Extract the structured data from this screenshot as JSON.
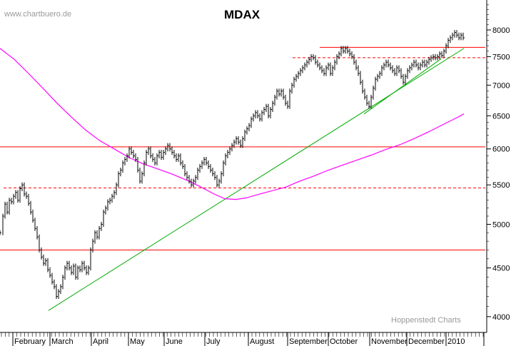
{
  "watermark": "www.chartbuero.de",
  "credit": "Hoppenstedt Charts",
  "chart_data": {
    "type": "line",
    "title": "MDAX",
    "y_scale": "log",
    "ylim": [
      3850,
      8600
    ],
    "y_ticks": [
      4000,
      4500,
      5000,
      5500,
      6000,
      6500,
      7000,
      7500,
      8000
    ],
    "x_labels": [
      "February",
      "March",
      "April",
      "May",
      "June",
      "July",
      "August",
      "September",
      "October",
      "November",
      "December",
      "2010"
    ],
    "grid": false,
    "series": [
      {
        "kind": "price-bars",
        "color": "#000000",
        "points": [
          [
            0,
            4900
          ],
          [
            4,
            5100
          ],
          [
            7,
            5250
          ],
          [
            10,
            5150
          ],
          [
            13,
            5300
          ],
          [
            16,
            5280
          ],
          [
            19,
            5350
          ],
          [
            22,
            5400
          ],
          [
            25,
            5300
          ],
          [
            28,
            5450
          ],
          [
            31,
            5500
          ],
          [
            34,
            5380
          ],
          [
            37,
            5350
          ],
          [
            40,
            5260
          ],
          [
            43,
            5150
          ],
          [
            46,
            5050
          ],
          [
            49,
            4950
          ],
          [
            52,
            4850
          ],
          [
            55,
            4700
          ],
          [
            58,
            4620
          ],
          [
            61,
            4550
          ],
          [
            64,
            4580
          ],
          [
            67,
            4480
          ],
          [
            70,
            4420
          ],
          [
            73,
            4350
          ],
          [
            76,
            4300
          ],
          [
            79,
            4200
          ],
          [
            82,
            4250
          ],
          [
            85,
            4300
          ],
          [
            88,
            4400
          ],
          [
            91,
            4500
          ],
          [
            94,
            4550
          ],
          [
            97,
            4500
          ],
          [
            100,
            4450
          ],
          [
            103,
            4520
          ],
          [
            106,
            4400
          ],
          [
            109,
            4500
          ],
          [
            112,
            4480
          ],
          [
            115,
            4550
          ],
          [
            118,
            4500
          ],
          [
            121,
            4450
          ],
          [
            124,
            4500
          ],
          [
            127,
            4700
          ],
          [
            130,
            4800
          ],
          [
            133,
            4900
          ],
          [
            136,
            4850
          ],
          [
            139,
            4950
          ],
          [
            142,
            5000
          ],
          [
            145,
            5150
          ],
          [
            148,
            5200
          ],
          [
            151,
            5280
          ],
          [
            154,
            5300
          ],
          [
            157,
            5350
          ],
          [
            160,
            5400
          ],
          [
            163,
            5500
          ],
          [
            166,
            5650
          ],
          [
            169,
            5700
          ],
          [
            172,
            5800
          ],
          [
            175,
            5850
          ],
          [
            178,
            5900
          ],
          [
            181,
            6000
          ],
          [
            184,
            5950
          ],
          [
            187,
            5900
          ],
          [
            190,
            5850
          ],
          [
            193,
            5700
          ],
          [
            196,
            5550
          ],
          [
            199,
            5650
          ],
          [
            202,
            5800
          ],
          [
            205,
            5950
          ],
          [
            208,
            6000
          ],
          [
            211,
            5900
          ],
          [
            214,
            5850
          ],
          [
            217,
            5800
          ],
          [
            220,
            5900
          ],
          [
            223,
            5950
          ],
          [
            226,
            5880
          ],
          [
            229,
            5950
          ],
          [
            232,
            6000
          ],
          [
            235,
            6050
          ],
          [
            238,
            6000
          ],
          [
            241,
            5950
          ],
          [
            244,
            5900
          ],
          [
            247,
            5850
          ],
          [
            250,
            5900
          ],
          [
            253,
            5800
          ],
          [
            256,
            5750
          ],
          [
            259,
            5650
          ],
          [
            262,
            5600
          ],
          [
            265,
            5550
          ],
          [
            268,
            5500
          ],
          [
            271,
            5550
          ],
          [
            274,
            5600
          ],
          [
            277,
            5700
          ],
          [
            280,
            5750
          ],
          [
            283,
            5800
          ],
          [
            286,
            5850
          ],
          [
            289,
            5800
          ],
          [
            292,
            5750
          ],
          [
            295,
            5700
          ],
          [
            298,
            5650
          ],
          [
            301,
            5600
          ],
          [
            304,
            5500
          ],
          [
            307,
            5550
          ],
          [
            310,
            5650
          ],
          [
            313,
            5800
          ],
          [
            316,
            5900
          ],
          [
            319,
            5950
          ],
          [
            322,
            6000
          ],
          [
            325,
            6050
          ],
          [
            328,
            6100
          ],
          [
            331,
            6150
          ],
          [
            334,
            6100
          ],
          [
            337,
            6050
          ],
          [
            340,
            6150
          ],
          [
            343,
            6250
          ],
          [
            346,
            6300
          ],
          [
            349,
            6350
          ],
          [
            352,
            6450
          ],
          [
            355,
            6500
          ],
          [
            358,
            6550
          ],
          [
            361,
            6500
          ],
          [
            364,
            6450
          ],
          [
            367,
            6550
          ],
          [
            370,
            6600
          ],
          [
            373,
            6650
          ],
          [
            376,
            6500
          ],
          [
            379,
            6600
          ],
          [
            382,
            6700
          ],
          [
            385,
            6800
          ],
          [
            388,
            6900
          ],
          [
            391,
            6850
          ],
          [
            394,
            6900
          ],
          [
            397,
            6800
          ],
          [
            400,
            6700
          ],
          [
            403,
            6650
          ],
          [
            406,
            6900
          ],
          [
            409,
            7000
          ],
          [
            412,
            7100
          ],
          [
            415,
            7150
          ],
          [
            418,
            7200
          ],
          [
            421,
            7250
          ],
          [
            424,
            7300
          ],
          [
            427,
            7350
          ],
          [
            430,
            7400
          ],
          [
            433,
            7450
          ],
          [
            436,
            7500
          ],
          [
            439,
            7480
          ],
          [
            442,
            7400
          ],
          [
            445,
            7350
          ],
          [
            448,
            7300
          ],
          [
            451,
            7250
          ],
          [
            454,
            7200
          ],
          [
            457,
            7300
          ],
          [
            460,
            7350
          ],
          [
            463,
            7200
          ],
          [
            466,
            7300
          ],
          [
            469,
            7400
          ],
          [
            472,
            7500
          ],
          [
            475,
            7550
          ],
          [
            478,
            7650
          ],
          [
            481,
            7600
          ],
          [
            484,
            7650
          ],
          [
            487,
            7600
          ],
          [
            490,
            7550
          ],
          [
            493,
            7500
          ],
          [
            496,
            7400
          ],
          [
            499,
            7300
          ],
          [
            502,
            7200
          ],
          [
            505,
            7050
          ],
          [
            508,
            6900
          ],
          [
            511,
            6800
          ],
          [
            514,
            6700
          ],
          [
            517,
            6650
          ],
          [
            520,
            6800
          ],
          [
            523,
            6950
          ],
          [
            526,
            7100
          ],
          [
            529,
            7150
          ],
          [
            532,
            7200
          ],
          [
            535,
            7300
          ],
          [
            538,
            7350
          ],
          [
            541,
            7400
          ],
          [
            544,
            7350
          ],
          [
            547,
            7300
          ],
          [
            550,
            7250
          ],
          [
            553,
            7200
          ],
          [
            556,
            7300
          ],
          [
            559,
            7250
          ],
          [
            562,
            7150
          ],
          [
            565,
            7050
          ],
          [
            568,
            7150
          ],
          [
            571,
            7250
          ],
          [
            574,
            7300
          ],
          [
            577,
            7350
          ],
          [
            580,
            7400
          ],
          [
            583,
            7350
          ],
          [
            586,
            7300
          ],
          [
            589,
            7350
          ],
          [
            592,
            7400
          ],
          [
            595,
            7350
          ],
          [
            598,
            7400
          ],
          [
            601,
            7450
          ],
          [
            604,
            7480
          ],
          [
            607,
            7500
          ],
          [
            610,
            7480
          ],
          [
            613,
            7500
          ],
          [
            616,
            7550
          ],
          [
            619,
            7520
          ],
          [
            622,
            7600
          ],
          [
            625,
            7700
          ],
          [
            628,
            7800
          ],
          [
            631,
            7850
          ],
          [
            634,
            7900
          ],
          [
            637,
            7950
          ],
          [
            640,
            7900
          ],
          [
            643,
            7850
          ],
          [
            646,
            7900
          ],
          [
            649,
            7850
          ]
        ]
      },
      {
        "kind": "moving-average",
        "color": "#ff00ff",
        "points": [
          [
            0,
            7650
          ],
          [
            20,
            7450
          ],
          [
            40,
            7200
          ],
          [
            60,
            6950
          ],
          [
            80,
            6700
          ],
          [
            100,
            6480
          ],
          [
            120,
            6280
          ],
          [
            140,
            6120
          ],
          [
            160,
            6000
          ],
          [
            180,
            5880
          ],
          [
            200,
            5790
          ],
          [
            220,
            5720
          ],
          [
            240,
            5650
          ],
          [
            260,
            5570
          ],
          [
            280,
            5480
          ],
          [
            300,
            5380
          ],
          [
            315,
            5320
          ],
          [
            330,
            5310
          ],
          [
            345,
            5330
          ],
          [
            360,
            5370
          ],
          [
            380,
            5420
          ],
          [
            400,
            5470
          ],
          [
            420,
            5550
          ],
          [
            440,
            5620
          ],
          [
            460,
            5700
          ],
          [
            480,
            5770
          ],
          [
            500,
            5840
          ],
          [
            520,
            5910
          ],
          [
            540,
            5990
          ],
          [
            560,
            6060
          ],
          [
            580,
            6150
          ],
          [
            600,
            6250
          ],
          [
            620,
            6360
          ],
          [
            640,
            6470
          ],
          [
            650,
            6530
          ]
        ]
      }
    ],
    "annotations": [
      {
        "type": "hline",
        "y": 6030,
        "style": "solid",
        "color": "#ff0000",
        "x_from": 0,
        "x_to": 680
      },
      {
        "type": "hline",
        "y": 4700,
        "style": "solid",
        "color": "#ff0000",
        "x_from": 0,
        "x_to": 680
      },
      {
        "type": "hline",
        "y": 5460,
        "style": "dashed",
        "color": "#ff0000",
        "x_from": 5,
        "x_to": 680
      },
      {
        "type": "hline",
        "y": 7480,
        "style": "dashed",
        "color": "#ff0000",
        "x_from": 410,
        "x_to": 680
      },
      {
        "type": "hline",
        "y": 7670,
        "style": "solid",
        "color": "#ff0000",
        "x_from": 448,
        "x_to": 680
      },
      {
        "type": "trendline",
        "color": "#00aa00",
        "from": [
          68,
          4060
        ],
        "to": [
          650,
          7650
        ]
      },
      {
        "type": "trendline",
        "color": "#00aa00",
        "from": [
          510,
          6530
        ],
        "to": [
          618,
          7460
        ]
      }
    ]
  }
}
